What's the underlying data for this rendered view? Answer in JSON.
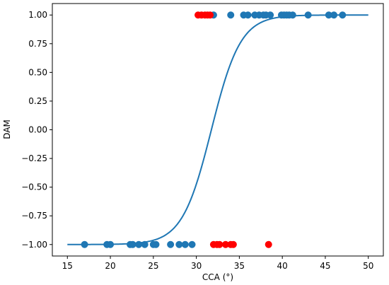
{
  "chart_data": {
    "type": "scatter",
    "xlabel": "CCA (°)",
    "ylabel": "DAM",
    "xlim": [
      13.25,
      51.75
    ],
    "ylim": [
      -1.1,
      1.1
    ],
    "grid": false,
    "x_ticks": [
      15,
      20,
      25,
      30,
      35,
      40,
      45,
      50
    ],
    "x_tick_labels": [
      "15",
      "20",
      "25",
      "30",
      "35",
      "40",
      "45",
      "50"
    ],
    "y_ticks": [
      -1.0,
      -0.75,
      -0.5,
      -0.25,
      0.0,
      0.25,
      0.5,
      0.75,
      1.0
    ],
    "y_tick_labels": [
      "−1.00",
      "−0.75",
      "−0.50",
      "−0.25",
      "0.00",
      "0.25",
      "0.50",
      "0.75",
      "1.00"
    ],
    "series": [
      {
        "kind": "scatter",
        "color": "#1f77b4",
        "points": [
          [
            17.0,
            -1
          ],
          [
            19.6,
            -1
          ],
          [
            20.0,
            -1
          ],
          [
            22.3,
            -1
          ],
          [
            22.6,
            -1
          ],
          [
            23.3,
            -1
          ],
          [
            24.0,
            -1
          ],
          [
            25.0,
            -1
          ],
          [
            25.3,
            -1
          ],
          [
            27.0,
            -1
          ],
          [
            28.0,
            -1
          ],
          [
            28.7,
            -1
          ],
          [
            29.5,
            -1
          ],
          [
            32.0,
            1
          ],
          [
            34.0,
            1
          ],
          [
            35.5,
            1
          ],
          [
            36.0,
            1
          ],
          [
            36.8,
            1
          ],
          [
            37.3,
            1
          ],
          [
            37.8,
            1
          ],
          [
            38.1,
            1
          ],
          [
            38.6,
            1
          ],
          [
            39.9,
            1
          ],
          [
            40.2,
            1
          ],
          [
            40.5,
            1
          ],
          [
            40.8,
            1
          ],
          [
            41.2,
            1
          ],
          [
            43.0,
            1
          ],
          [
            45.4,
            1
          ],
          [
            46.0,
            1
          ],
          [
            47.0,
            1
          ]
        ]
      },
      {
        "kind": "scatter",
        "color": "#ff0000",
        "points": [
          [
            30.2,
            1
          ],
          [
            30.6,
            1
          ],
          [
            31.0,
            1
          ],
          [
            31.3,
            1
          ],
          [
            31.6,
            1
          ],
          [
            32.0,
            -1
          ],
          [
            32.4,
            -1
          ],
          [
            32.7,
            -1
          ],
          [
            33.4,
            -1
          ],
          [
            34.0,
            -1
          ],
          [
            34.3,
            -1
          ],
          [
            38.4,
            -1
          ]
        ]
      },
      {
        "kind": "line",
        "color": "#1f77b4",
        "function": "tanh",
        "center": 31.75,
        "scale": 3.4,
        "x_range": [
          15,
          50
        ]
      }
    ]
  }
}
